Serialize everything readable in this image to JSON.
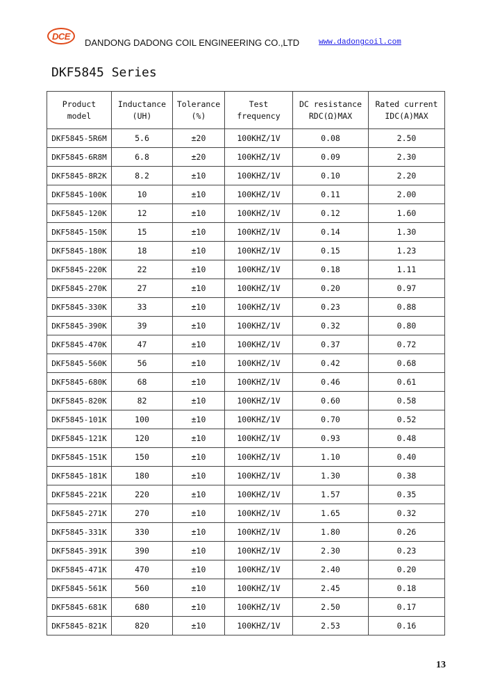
{
  "header": {
    "logo_text": "DCE",
    "company": "DANDONG DADONG COIL ENGINEERING CO.,LTD",
    "url": "www.dadongcoil.com",
    "accent_color": "#e04a1a"
  },
  "title": "DKF5845 Series",
  "table": {
    "headers": [
      [
        "Product",
        "model"
      ],
      [
        "Inductance",
        "(UH)"
      ],
      [
        "Tolerance",
        "(%)"
      ],
      [
        "Test",
        "frequency"
      ],
      [
        "DC resistance",
        "RDC(Ω)MAX"
      ],
      [
        "Rated current",
        "IDC(A)MAX"
      ]
    ],
    "rows": [
      [
        "DKF5845-5R6M",
        "5.6",
        "±20",
        "100KHZ/1V",
        "0.08",
        "2.50"
      ],
      [
        "DKF5845-6R8M",
        "6.8",
        "±20",
        "100KHZ/1V",
        "0.09",
        "2.30"
      ],
      [
        "DKF5845-8R2K",
        "8.2",
        "±10",
        "100KHZ/1V",
        "0.10",
        "2.20"
      ],
      [
        "DKF5845-100K",
        "10",
        "±10",
        "100KHZ/1V",
        "0.11",
        "2.00"
      ],
      [
        "DKF5845-120K",
        "12",
        "±10",
        "100KHZ/1V",
        "0.12",
        "1.60"
      ],
      [
        "DKF5845-150K",
        "15",
        "±10",
        "100KHZ/1V",
        "0.14",
        "1.30"
      ],
      [
        "DKF5845-180K",
        "18",
        "±10",
        "100KHZ/1V",
        "0.15",
        "1.23"
      ],
      [
        "DKF5845-220K",
        "22",
        "±10",
        "100KHZ/1V",
        "0.18",
        "1.11"
      ],
      [
        "DKF5845-270K",
        "27",
        "±10",
        "100KHZ/1V",
        "0.20",
        "0.97"
      ],
      [
        "DKF5845-330K",
        "33",
        "±10",
        "100KHZ/1V",
        "0.23",
        "0.88"
      ],
      [
        "DKF5845-390K",
        "39",
        "±10",
        "100KHZ/1V",
        "0.32",
        "0.80"
      ],
      [
        "DKF5845-470K",
        "47",
        "±10",
        "100KHZ/1V",
        "0.37",
        "0.72"
      ],
      [
        "DKF5845-560K",
        "56",
        "±10",
        "100KHZ/1V",
        "0.42",
        "0.68"
      ],
      [
        "DKF5845-680K",
        "68",
        "±10",
        "100KHZ/1V",
        "0.46",
        "0.61"
      ],
      [
        "DKF5845-820K",
        "82",
        "±10",
        "100KHZ/1V",
        "0.60",
        "0.58"
      ],
      [
        "DKF5845-101K",
        "100",
        "±10",
        "100KHZ/1V",
        "0.70",
        "0.52"
      ],
      [
        "DKF5845-121K",
        "120",
        "±10",
        "100KHZ/1V",
        "0.93",
        "0.48"
      ],
      [
        "DKF5845-151K",
        "150",
        "±10",
        "100KHZ/1V",
        "1.10",
        "0.40"
      ],
      [
        "DKF5845-181K",
        "180",
        "±10",
        "100KHZ/1V",
        "1.30",
        "0.38"
      ],
      [
        "DKF5845-221K",
        "220",
        "±10",
        "100KHZ/1V",
        "1.57",
        "0.35"
      ],
      [
        "DKF5845-271K",
        "270",
        "±10",
        "100KHZ/1V",
        "1.65",
        "0.32"
      ],
      [
        "DKF5845-331K",
        "330",
        "±10",
        "100KHZ/1V",
        "1.80",
        "0.26"
      ],
      [
        "DKF5845-391K",
        "390",
        "±10",
        "100KHZ/1V",
        "2.30",
        "0.23"
      ],
      [
        "DKF5845-471K",
        "470",
        "±10",
        "100KHZ/1V",
        "2.40",
        "0.20"
      ],
      [
        "DKF5845-561K",
        "560",
        "±10",
        "100KHZ/1V",
        "2.45",
        "0.18"
      ],
      [
        "DKF5845-681K",
        "680",
        "±10",
        "100KHZ/1V",
        "2.50",
        "0.17"
      ],
      [
        "DKF5845-821K",
        "820",
        "±10",
        "100KHZ/1V",
        "2.53",
        "0.16"
      ]
    ]
  },
  "page_number": "13"
}
